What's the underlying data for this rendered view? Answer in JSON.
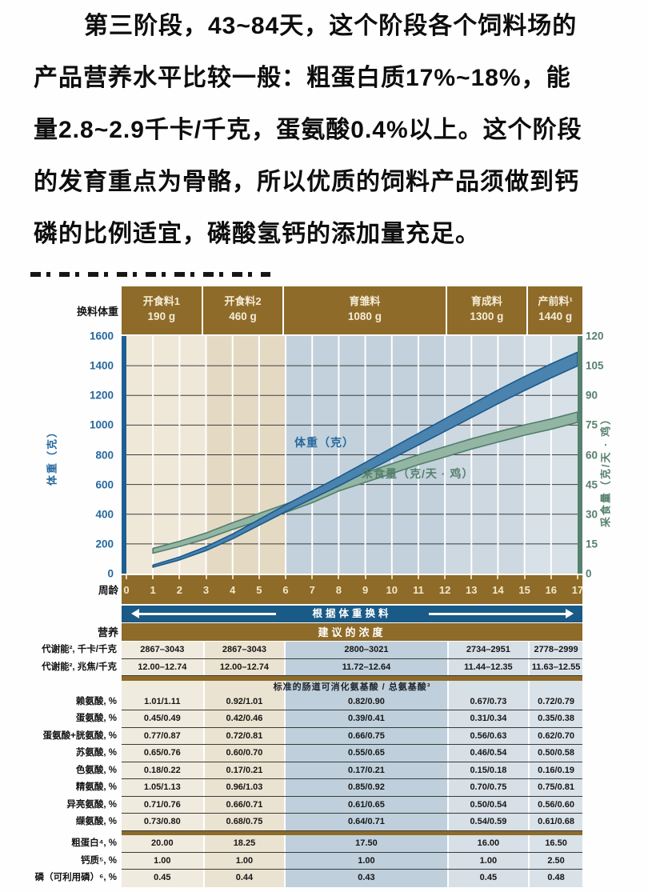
{
  "intro": {
    "lines": [
      "第三阶段，43~84天，这个阶段各个饲料场的",
      "产品营养水平比较一般：粗蛋白质17%~18%，能",
      "量2.8~2.9千卡/千克，蛋氨酸0.4%以上。这个阶段",
      "的发育重点为骨骼，所以优质的饲料产品须做到钙",
      "磷的比例适宜，磷酸氢钙的添加量充足。"
    ]
  },
  "figure": {
    "phase_row_label": "换料体重",
    "phases": [
      {
        "name": "开食料1",
        "weight": "190 g",
        "weeks": [
          0,
          3
        ]
      },
      {
        "name": "开食料2",
        "weight": "460 g",
        "weeks": [
          3,
          6
        ]
      },
      {
        "name": "育雏料",
        "weight": "1080 g",
        "weeks": [
          6,
          12
        ]
      },
      {
        "name": "育成料",
        "weight": "1300 g",
        "weeks": [
          12,
          15
        ]
      },
      {
        "name": "产前料¹",
        "weight": "1440 g",
        "weeks": [
          15,
          17
        ]
      }
    ],
    "x_axis_label": "周龄",
    "switch_label": "根据体重换料",
    "colors": {
      "phase_brown": "#8e6b29",
      "switch_band_blue": "#1a5a86",
      "left_axis_blue": "#26689e",
      "left_axis_bar": "#1e5f93",
      "right_axis_green": "#56816e",
      "right_axis_bar": "#56816e"
    }
  },
  "chart_data": {
    "type": "area",
    "title": "",
    "x_label": "周龄",
    "x_range": [
      0,
      17
    ],
    "x": [
      1,
      2,
      3,
      4,
      5,
      6,
      7,
      8,
      9,
      10,
      11,
      12,
      13,
      14,
      15,
      16,
      17
    ],
    "left_axis": {
      "label": "体重（克）",
      "min": 0,
      "max": 1600,
      "step": 200
    },
    "right_axis": {
      "label": "采食量（克/天 · 鸡）",
      "min": 0,
      "max": 120,
      "step": 15
    },
    "grid": {
      "horizontal": true,
      "vertical_white_lines_per_week": true
    },
    "series": [
      {
        "key": "weight",
        "name": "体重（克）",
        "axis": "left",
        "fill": "#4a83ae",
        "edge": "#1b5a8c",
        "upper": [
          57,
          112,
          181,
          266,
          364,
          463,
          556,
          650,
          748,
          846,
          944,
          1042,
          1139,
          1236,
          1327,
          1412,
          1491
        ],
        "lower": [
          43,
          92,
          155,
          234,
          326,
          417,
          504,
          590,
          682,
          774,
          866,
          958,
          1051,
          1144,
          1233,
          1318,
          1399
        ]
      },
      {
        "key": "intake",
        "name": "采食量（克/天 · 鸡）",
        "axis": "right",
        "fill": "#93b5a4",
        "edge": "#527e6b",
        "upper": [
          12.7,
          16.3,
          20.5,
          25.7,
          30.4,
          35.1,
          40.2,
          46.3,
          50.9,
          55.5,
          60.0,
          64.1,
          68.1,
          71.6,
          75.1,
          78.1,
          81.6
        ],
        "lower": [
          10.3,
          13.7,
          17.5,
          22.3,
          26.6,
          30.9,
          35.8,
          41.7,
          46.1,
          50.5,
          55.0,
          58.9,
          62.9,
          66.4,
          69.9,
          72.9,
          76.4
        ]
      }
    ],
    "phase_backgrounds": [
      {
        "from": 0,
        "to": 3,
        "color": "#efe8d9"
      },
      {
        "from": 3,
        "to": 6,
        "color": "#e4dac4"
      },
      {
        "from": 6,
        "to": 12,
        "color": "#c2d1dc"
      },
      {
        "from": 12,
        "to": 15,
        "color": "#cdd8e1"
      },
      {
        "from": 15,
        "to": 17,
        "color": "#d8e1e8"
      }
    ]
  },
  "table": {
    "nutrition_label": "营养",
    "header": "建议的浓度",
    "column_colors": [
      "#f0ebdf",
      "#ebe3d1",
      "#bfd0dc",
      "#d7dfe7",
      "#dae2e9"
    ],
    "rows": [
      {
        "label": "代谢能², 千卡/千克",
        "values": [
          "2867–3043",
          "2867–3043",
          "2800–3021",
          "2734–2951",
          "2778–2999"
        ]
      },
      {
        "label": "代谢能², 兆焦/千克",
        "values": [
          "12.00–12.74",
          "12.00–12.74",
          "11.72–12.64",
          "11.44–12.35",
          "11.63–12.55"
        ]
      },
      {
        "divider": true
      },
      {
        "subheader": "标准的肠道可消化氨基酸 / 总氨基酸³"
      },
      {
        "label": "赖氨酸, %",
        "values": [
          "1.01/1.11",
          "0.92/1.01",
          "0.82/0.90",
          "0.67/0.73",
          "0.72/0.79"
        ]
      },
      {
        "label": "蛋氨酸, %",
        "values": [
          "0.45/0.49",
          "0.42/0.46",
          "0.39/0.41",
          "0.31/0.34",
          "0.35/0.38"
        ]
      },
      {
        "label": "蛋氨酸+胱氨酸, %",
        "values": [
          "0.77/0.87",
          "0.72/0.81",
          "0.66/0.75",
          "0.56/0.63",
          "0.62/0.70"
        ]
      },
      {
        "label": "苏氨酸, %",
        "values": [
          "0.65/0.76",
          "0.60/0.70",
          "0.55/0.65",
          "0.46/0.54",
          "0.50/0.58"
        ]
      },
      {
        "label": "色氨酸, %",
        "values": [
          "0.18/0.22",
          "0.17/0.21",
          "0.17/0.21",
          "0.15/0.18",
          "0.16/0.19"
        ]
      },
      {
        "label": "精氨酸, %",
        "values": [
          "1.05/1.13",
          "0.96/1.03",
          "0.85/0.92",
          "0.70/0.75",
          "0.75/0.81"
        ]
      },
      {
        "label": "异亮氨酸, %",
        "values": [
          "0.71/0.76",
          "0.66/0.71",
          "0.61/0.65",
          "0.50/0.54",
          "0.56/0.60"
        ]
      },
      {
        "label": "缬氨酸, %",
        "values": [
          "0.73/0.80",
          "0.68/0.75",
          "0.64/0.71",
          "0.54/0.59",
          "0.61/0.68"
        ]
      },
      {
        "divider": true
      },
      {
        "label": "粗蛋白⁴, %",
        "values": [
          "20.00",
          "18.25",
          "17.50",
          "16.00",
          "16.50"
        ]
      },
      {
        "label": "钙质⁵, %",
        "values": [
          "1.00",
          "1.00",
          "1.00",
          "1.00",
          "2.50"
        ]
      },
      {
        "label": "磷（可利用磷）⁶, %",
        "values": [
          "0.45",
          "0.44",
          "0.43",
          "0.45",
          "0.48"
        ]
      }
    ]
  }
}
